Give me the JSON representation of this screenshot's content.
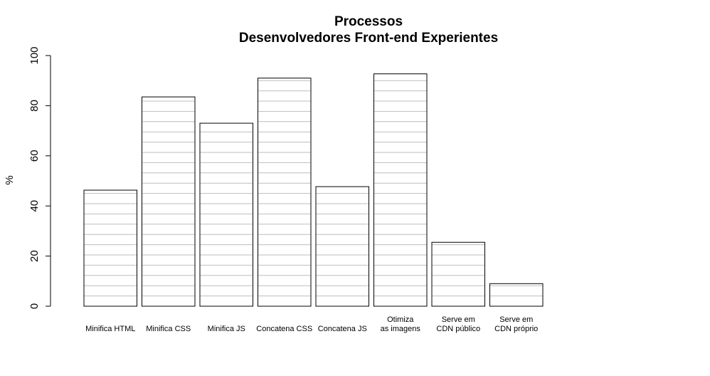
{
  "chart_data": {
    "type": "bar",
    "title": "Processos",
    "subtitle": "Desenvolvedores Front-end Experientes",
    "xlabel": "",
    "ylabel": "%",
    "ylim": [
      0,
      100
    ],
    "yticks": [
      0,
      20,
      40,
      60,
      80,
      100
    ],
    "grid": false,
    "bar_fill_pattern": "horizontal-lines",
    "colors": {
      "bar_fill": "#ffffff",
      "bar_border": "#000000",
      "hatch": "#bebebe"
    },
    "categories": [
      "Minifica HTML",
      "Minifica CSS",
      "Minifica JS",
      "Concatena CSS",
      "Concatena JS",
      "Otimiza\nas imagens",
      "Serve em\nCDN público",
      "Serve em\nCDN próprio"
    ],
    "values": [
      46.3,
      83.5,
      73.0,
      91.0,
      47.7,
      92.7,
      25.5,
      9.0
    ]
  }
}
